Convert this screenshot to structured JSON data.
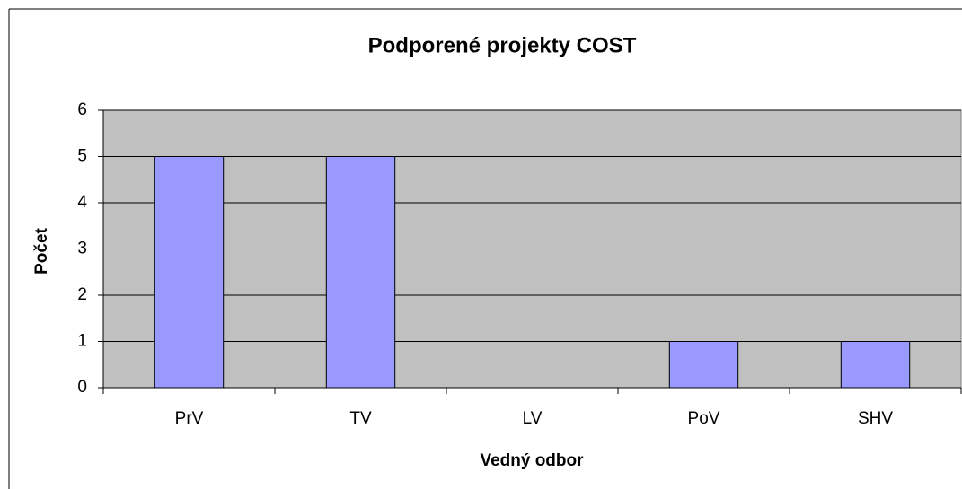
{
  "chart_data": {
    "type": "bar",
    "title": "Podporené projekty COST",
    "x_label": "Vedný odbor",
    "y_label": "Počet",
    "categories": [
      "PrV",
      "TV",
      "LV",
      "PoV",
      "SHV"
    ],
    "values": [
      5,
      5,
      0,
      1,
      1
    ],
    "color": "#9999ff",
    "ylim": [
      0,
      6
    ],
    "yticks": [
      0,
      1,
      2,
      3,
      4,
      5,
      6
    ],
    "grid": true
  }
}
